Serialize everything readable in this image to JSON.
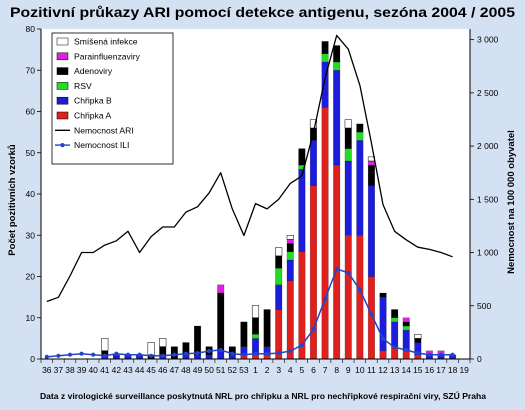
{
  "colors": {
    "page_background": "#d4e1f3",
    "plot_background": "#ffffff"
  },
  "footer": "Data z virologické surveillance poskytnutá NRL pro chřipku a NRL pro nechřipkové respirační viry, SZÚ Praha",
  "chart_data": {
    "type": "bar",
    "stacked": true,
    "title": "Pozitivní průkazy ARI pomocí detekce antigenu, sezóna 2004 / 2005",
    "ylabel": "Počet pozitivních vzorků",
    "y2label": "Nemocnost na 100 000 obyvatel",
    "ylim": [
      0,
      80
    ],
    "yticks": [
      0,
      10,
      20,
      30,
      40,
      50,
      60,
      70,
      80
    ],
    "y2lim": [
      0,
      3100
    ],
    "y2ticks": [
      {
        "value": 0,
        "label": "0"
      },
      {
        "value": 500,
        "label": "500"
      },
      {
        "value": 1000,
        "label": "1 000"
      },
      {
        "value": 1500,
        "label": "1 500"
      },
      {
        "value": 2000,
        "label": "2 000"
      },
      {
        "value": 2500,
        "label": "2 500"
      },
      {
        "value": 3000,
        "label": "3 000"
      }
    ],
    "grid": false,
    "legend": "top-left",
    "categories": [
      "36",
      "37",
      "38",
      "39",
      "40",
      "41",
      "42",
      "43",
      "44",
      "45",
      "46",
      "47",
      "48",
      "49",
      "50",
      "51",
      "52",
      "53",
      "1",
      "2",
      "3",
      "4",
      "5",
      "6",
      "7",
      "8",
      "9",
      "10",
      "11",
      "12",
      "13",
      "14",
      "15",
      "16",
      "17",
      "18",
      "19"
    ],
    "series": [
      {
        "name": "Smíšená infekce",
        "type": "bar",
        "axis": "left",
        "color": "#ffffff",
        "values": [
          0,
          0,
          0,
          0,
          0,
          3,
          0,
          0,
          0,
          3,
          2,
          0,
          0,
          0,
          0,
          0,
          0,
          0,
          3,
          0,
          2,
          1,
          0,
          2,
          0,
          0,
          2,
          0,
          1,
          0,
          0,
          0,
          1,
          0,
          0,
          0,
          0
        ]
      },
      {
        "name": "Parainfluenzaviry",
        "type": "bar",
        "axis": "left",
        "color": "#e020e0",
        "values": [
          0,
          0,
          0,
          0,
          0,
          0,
          0,
          0,
          0,
          0,
          0,
          0,
          0,
          0,
          0,
          2,
          0,
          0,
          0,
          0,
          0,
          1,
          0,
          0,
          0,
          0,
          0,
          0,
          1,
          0,
          0,
          1,
          0,
          1,
          1,
          0,
          0
        ]
      },
      {
        "name": "Adenoviry",
        "type": "bar",
        "axis": "left",
        "color": "#000000",
        "values": [
          0,
          0,
          0,
          0,
          0,
          1,
          0,
          0,
          0,
          1,
          2,
          3,
          3,
          7,
          2,
          14,
          2,
          6,
          4,
          9,
          3,
          2,
          4,
          3,
          3,
          4,
          5,
          2,
          5,
          1,
          2,
          1,
          1,
          0,
          0,
          0,
          0
        ]
      },
      {
        "name": "RSV",
        "type": "bar",
        "axis": "left",
        "color": "#22dd22",
        "values": [
          0,
          0,
          0,
          0,
          0,
          0,
          0,
          0,
          0,
          0,
          0,
          0,
          0,
          0,
          0,
          0,
          0,
          0,
          1,
          0,
          4,
          2,
          1,
          0,
          2,
          2,
          3,
          2,
          0,
          0,
          1,
          1,
          0,
          0,
          0,
          0,
          0
        ]
      },
      {
        "name": "Chřipka B",
        "type": "bar",
        "axis": "left",
        "color": "#1c1cdc",
        "values": [
          0,
          0,
          0,
          0,
          0,
          1,
          1,
          1,
          1,
          0,
          1,
          0,
          1,
          1,
          1,
          2,
          1,
          2,
          4,
          2,
          6,
          5,
          20,
          11,
          11,
          23,
          18,
          23,
          22,
          13,
          6,
          5,
          3,
          1,
          1,
          1,
          0
        ]
      },
      {
        "name": "Chřipka A",
        "type": "bar",
        "axis": "left",
        "color": "#e0201c",
        "values": [
          0,
          0,
          0,
          0,
          0,
          0,
          0,
          0,
          0,
          0,
          0,
          0,
          0,
          0,
          0,
          0,
          0,
          1,
          1,
          1,
          12,
          19,
          26,
          42,
          61,
          47,
          30,
          30,
          20,
          2,
          3,
          2,
          1,
          0,
          0,
          0,
          0
        ]
      },
      {
        "name": "Nemocnost ARI",
        "type": "line",
        "axis": "right",
        "color": "#000000",
        "values": [
          540,
          580,
          780,
          1000,
          1000,
          1070,
          1110,
          1200,
          1000,
          1150,
          1240,
          1240,
          1380,
          1430,
          1560,
          1750,
          1410,
          1160,
          1460,
          1410,
          1500,
          1650,
          1720,
          2130,
          2640,
          3040,
          2910,
          2570,
          2030,
          1450,
          1200,
          1120,
          1050,
          1030,
          1000,
          960,
          null
        ]
      },
      {
        "name": "Nemocnost ILI",
        "type": "line",
        "axis": "right",
        "marker": "circle",
        "color": "#2244cc",
        "values": [
          20,
          30,
          40,
          50,
          40,
          30,
          50,
          40,
          40,
          30,
          30,
          40,
          50,
          55,
          75,
          85,
          50,
          40,
          50,
          50,
          55,
          75,
          130,
          280,
          565,
          845,
          810,
          650,
          420,
          190,
          110,
          85,
          55,
          40,
          40,
          40,
          null
        ]
      }
    ]
  }
}
